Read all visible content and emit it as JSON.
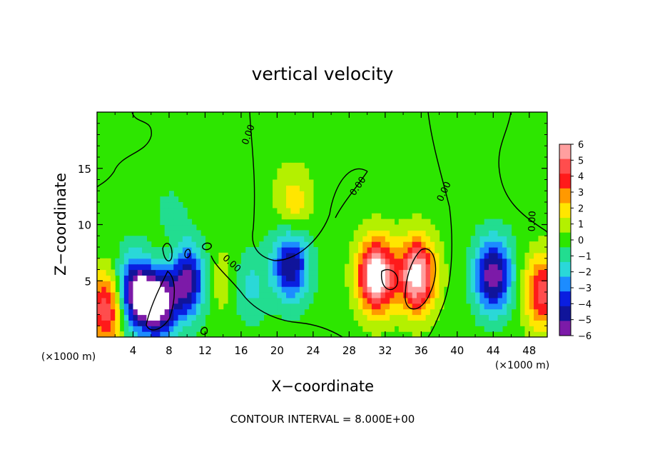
{
  "chart_data": {
    "type": "heatmap",
    "title": "vertical velocity",
    "xlabel": "X−coordinate",
    "ylabel": "Z−coordinate",
    "x_unit": "(×1000 m)",
    "y_unit": "(×1000 m)",
    "xlim": [
      0,
      50
    ],
    "ylim": [
      0,
      20
    ],
    "x_ticks": [
      4,
      8,
      12,
      16,
      20,
      24,
      28,
      32,
      36,
      40,
      44,
      48
    ],
    "x_tick_labels": [
      "4",
      "8",
      "12",
      "16",
      "20",
      "24",
      "28",
      "32",
      "36",
      "40",
      "44",
      "48"
    ],
    "y_ticks": [
      5,
      10,
      15
    ],
    "y_tick_labels": [
      "5",
      "10",
      "15"
    ],
    "colorbar": {
      "ticks": [
        6,
        5,
        4,
        3,
        2,
        1,
        0,
        -1,
        -2,
        -3,
        -4,
        -5,
        -6
      ],
      "labels": [
        "6",
        "5",
        "4",
        "3",
        "2",
        "1",
        "0",
        "−1",
        "−2",
        "−3",
        "−4",
        "−5",
        "−6"
      ],
      "colors": [
        "#ff9f9f",
        "#ff4d4d",
        "#ff1a1a",
        "#ff9900",
        "#ffe600",
        "#b4f000",
        "#2de600",
        "#22dd90",
        "#2ad8d8",
        "#1c8cff",
        "#0a1ee0",
        "#10149a",
        "#7c1aa8"
      ]
    },
    "contour_label": "0.00",
    "contour_interval_text": "CONTOUR INTERVAL = 8.000E+00",
    "features": [
      {
        "x": 1.0,
        "z": 2.5,
        "w": 5.5
      },
      {
        "x": 4.2,
        "z": 4.0,
        "w": -6.5
      },
      {
        "x": 6.8,
        "z": 3.2,
        "w": -7.5
      },
      {
        "x": 10.0,
        "z": 5.0,
        "w": -6.0
      },
      {
        "x": 7.6,
        "z": 7.0,
        "w": 1.8
      },
      {
        "x": 13.8,
        "z": 5.0,
        "w": 1.2
      },
      {
        "x": 17.0,
        "z": 4.5,
        "w": -1.8
      },
      {
        "x": 21.5,
        "z": 6.5,
        "w": -5.5
      },
      {
        "x": 21.8,
        "z": 11.8,
        "w": 2.2
      },
      {
        "x": 31.0,
        "z": 5.5,
        "w": 8.0
      },
      {
        "x": 35.5,
        "z": 5.5,
        "w": 7.5
      },
      {
        "x": 44.0,
        "z": 5.5,
        "w": -6.5
      },
      {
        "x": 49.5,
        "z": 4.0,
        "w": 5.0
      },
      {
        "x": 8.0,
        "z": 10.0,
        "w": -1.2
      }
    ]
  }
}
